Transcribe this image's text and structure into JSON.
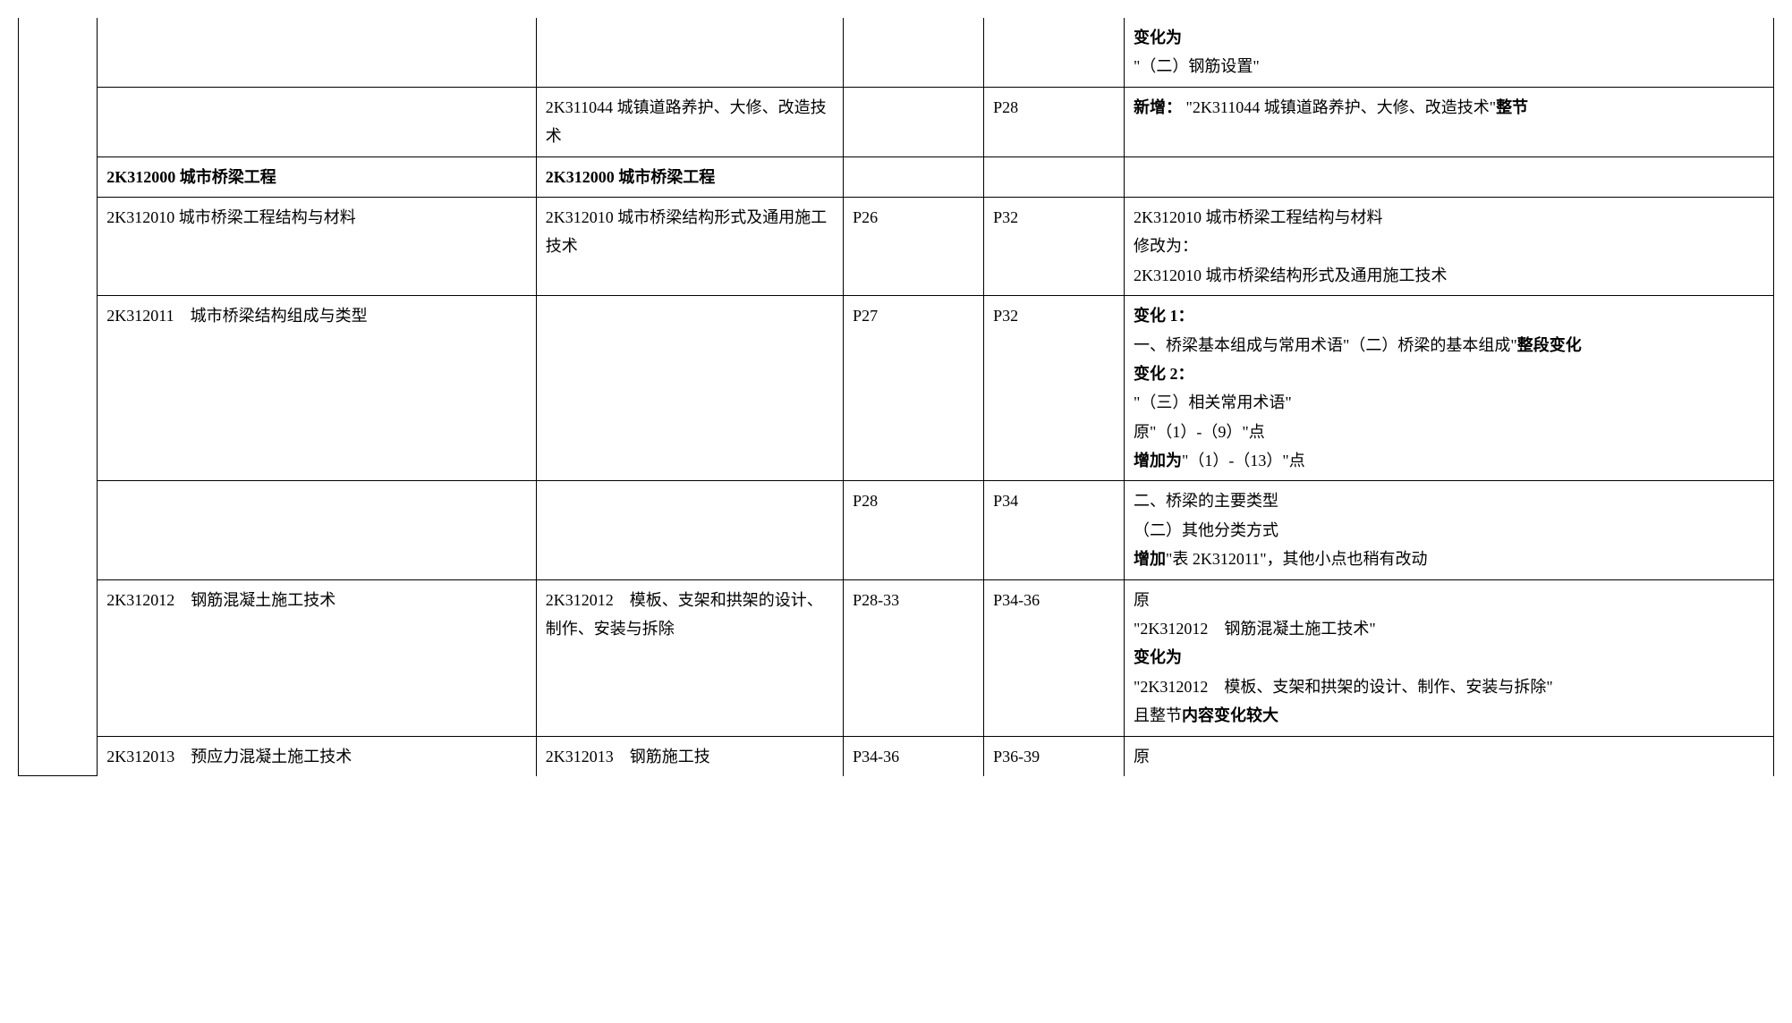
{
  "rows": [
    {
      "c1": "",
      "c2": "",
      "c3": "",
      "c4": "",
      "c5_parts": [
        {
          "text": "变化为",
          "bold": true
        },
        {
          "text": "\"（二）钢筋设置\"",
          "bold": false
        }
      ]
    },
    {
      "c1": "",
      "c2": "2K311044 城镇道路养护、大修、改造技术",
      "c3": "",
      "c4": "P28",
      "c5_parts": [
        {
          "text": "新增：",
          "bold": true
        },
        {
          "text": " \"2K311044 城镇道路养护、大修、改造技术\"",
          "bold": false,
          "inline": true
        },
        {
          "text": "整节",
          "bold": true,
          "inline": true
        }
      ]
    },
    {
      "c1": "2K312000 城市桥梁工程",
      "c1_bold": true,
      "c2": "2K312000 城市桥梁工程",
      "c2_bold": true,
      "c3": "",
      "c4": "",
      "c5_parts": []
    },
    {
      "c1": "2K312010 城市桥梁工程结构与材料",
      "c2": "2K312010 城市桥梁结构形式及通用施工技术",
      "c3": "P26",
      "c4": "P32",
      "c5_parts": [
        {
          "text": "2K312010 城市桥梁工程结构与材料",
          "bold": false
        },
        {
          "text": "修改为：",
          "bold": false
        },
        {
          "text": "2K312010 城市桥梁结构形式及通用施工技术",
          "bold": false
        }
      ]
    },
    {
      "c1": "2K312011　城市桥梁结构组成与类型",
      "c2": "",
      "c3": "P27",
      "c4": "P32",
      "c5_parts": [
        {
          "text": "变化 1：",
          "bold": true
        },
        {
          "text": "一、桥梁基本组成与常用术语",
          "bold": false
        },
        {
          "text": "\"（二）桥梁的基本组成\"",
          "bold": false,
          "inline": true
        },
        {
          "text": "整段变化",
          "bold": true,
          "inline": true
        },
        {
          "text": "变化 2：",
          "bold": true,
          "newline": true
        },
        {
          "text": "\"（三）相关常用术语\"",
          "bold": false
        },
        {
          "text": "原\"（1）-（9）\"点",
          "bold": false
        },
        {
          "text": "增加为",
          "bold": true,
          "inline_start": true
        },
        {
          "text": "\"（1）-（13）\"点",
          "bold": false,
          "inline": true
        }
      ]
    },
    {
      "c1": "",
      "c2": "",
      "c3": "P28",
      "c4": "P34",
      "c5_parts": [
        {
          "text": "二、桥梁的主要类型",
          "bold": false
        },
        {
          "text": "（二）其他分类方式",
          "bold": false
        },
        {
          "text": "增加",
          "bold": true,
          "inline_start": true
        },
        {
          "text": "\"表 2K312011\"，其他小点也稍有改动",
          "bold": false,
          "inline": true
        }
      ]
    },
    {
      "c1": "2K312012　钢筋混凝土施工技术",
      "c2": "2K312012　模板、支架和拱架的设计、制作、安装与拆除",
      "c3": "P28-33",
      "c4": "P34-36",
      "c5_parts": [
        {
          "text": "原",
          "bold": false
        },
        {
          "text": "\"2K312012　钢筋混凝土施工技术\"",
          "bold": false
        },
        {
          "text": "变化为",
          "bold": true
        },
        {
          "text": "\"2K312012　模板、支架和拱架的设计、制作、安装与拆除\"",
          "bold": false
        },
        {
          "text": "且整节",
          "bold": false,
          "inline_start": true
        },
        {
          "text": "内容变化较大",
          "bold": true,
          "inline": true
        }
      ]
    },
    {
      "c1": "2K312013　预应力混凝土施工技术",
      "c2": "2K312013　钢筋施工技",
      "c3": "P34-36",
      "c4": "P36-39",
      "c5_parts": [
        {
          "text": "原",
          "bold": false
        }
      ],
      "last": true
    }
  ]
}
